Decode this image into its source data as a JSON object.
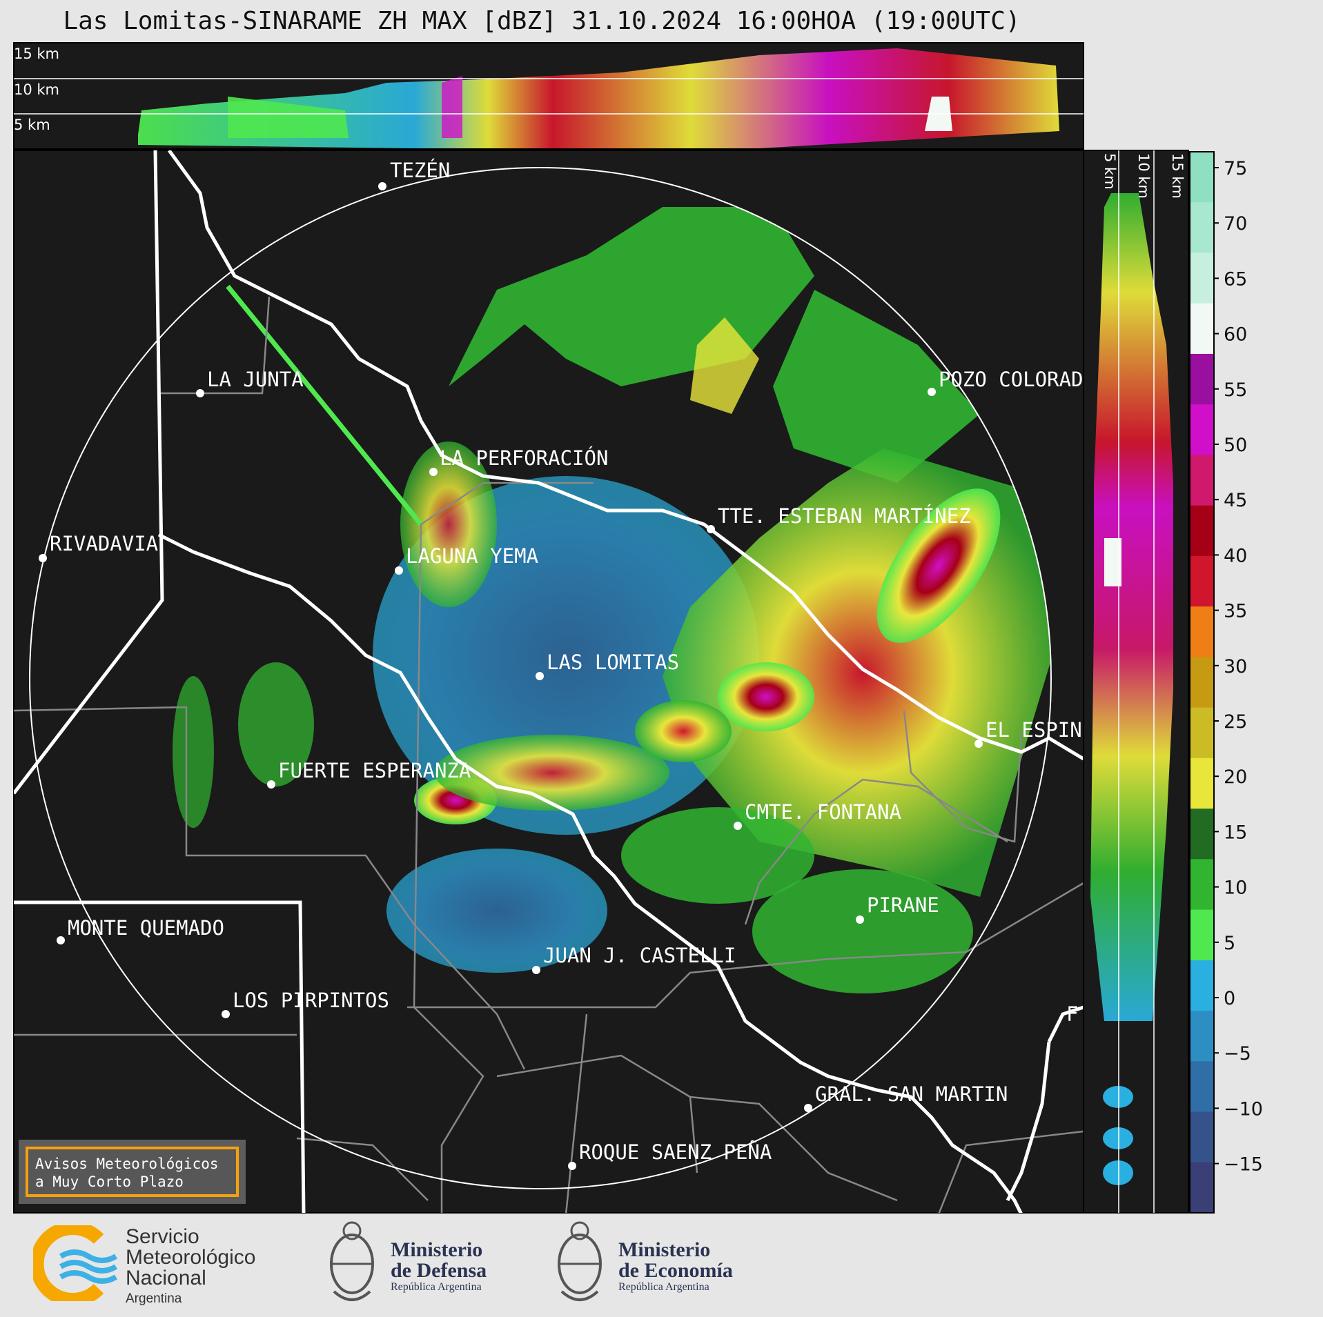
{
  "title": "Las Lomitas-SINARAME ZH MAX [dBZ] 31.10.2024 16:00HOA (19:00UTC)",
  "top_panel": {
    "height_labels": [
      "15 km",
      "10 km",
      "5 km"
    ]
  },
  "side_panel": {
    "height_labels": [
      "5 km",
      "10 km",
      "15 km"
    ]
  },
  "colorbar": {
    "unit": "dBZ",
    "ticks": [
      "75",
      "70",
      "65",
      "60",
      "55",
      "50",
      "45",
      "40",
      "35",
      "30",
      "25",
      "20",
      "15",
      "10",
      "5",
      "0",
      "−5",
      "−10",
      "−15"
    ],
    "colors": [
      "#8fe0c0",
      "#a8e8cf",
      "#c6efde",
      "#f2f8f4",
      "#9a0fa0",
      "#d10fc9",
      "#d0186c",
      "#a60016",
      "#d0162d",
      "#f07e16",
      "#c79a14",
      "#cbbc26",
      "#e9e63b",
      "#226b22",
      "#31b531",
      "#4fe84f",
      "#2ab0e0",
      "#2d8ec4",
      "#2f6ea6",
      "#35538a",
      "#3a3f76"
    ]
  },
  "cities": [
    {
      "name": "TEZÉN"
    },
    {
      "name": "LA JUNTA"
    },
    {
      "name": "POZO COLORAD"
    },
    {
      "name": "LA PERFORACIÓN"
    },
    {
      "name": "TTE. ESTEBAN MARTÍNEZ"
    },
    {
      "name": "RIVADAVIA"
    },
    {
      "name": "LAGUNA YEMA"
    },
    {
      "name": "LAS LOMITAS"
    },
    {
      "name": "EL ESPIN"
    },
    {
      "name": "FUERTE ESPERANZA"
    },
    {
      "name": "CMTE. FONTANA"
    },
    {
      "name": "PIRANE"
    },
    {
      "name": "MONTE QUEMADO"
    },
    {
      "name": "JUAN J. CASTELLI"
    },
    {
      "name": "LOS PIRPINTOS"
    },
    {
      "name": "GRAL. SAN MARTIN"
    },
    {
      "name": "ROQUE SAENZ PEÑA"
    },
    {
      "name": "F"
    }
  ],
  "aviso": "Avisos Meteorológicos\na Muy Corto Plazo",
  "logos": {
    "smn": {
      "line1": "Servicio",
      "line2": "Meteorológico",
      "line3": "Nacional",
      "line4": "Argentina"
    },
    "defensa": {
      "line1": "Ministerio",
      "line2": "de Defensa",
      "sub": "República Argentina"
    },
    "economia": {
      "line1": "Ministerio",
      "line2": "de Economía",
      "sub": "República Argentina"
    }
  }
}
